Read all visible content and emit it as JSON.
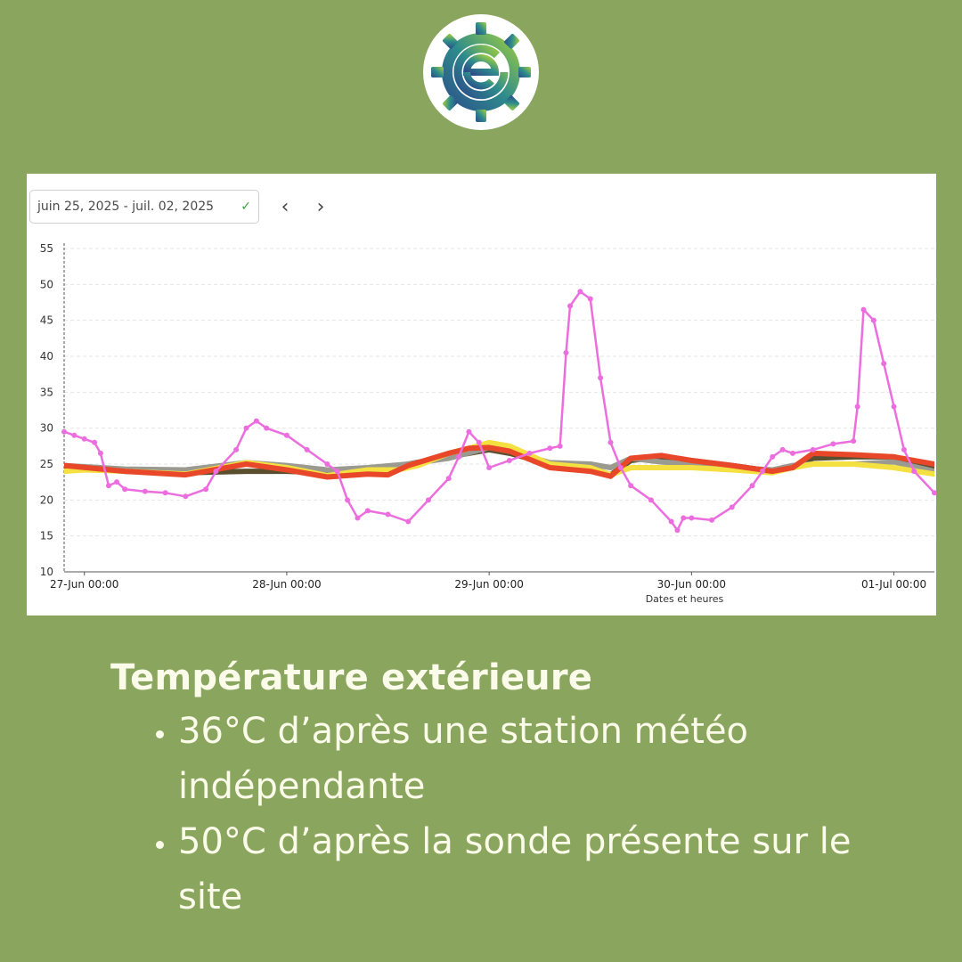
{
  "header": {
    "logo_icon": "gear-e-logo-icon"
  },
  "controls": {
    "date_range": "juin 25, 2025 - juil. 02, 2025",
    "check_icon": "checkmark-icon",
    "prev_icon": "chevron-left-icon",
    "next_icon": "chevron-right-icon",
    "prev_glyph": "‹",
    "next_glyph": "›",
    "check_glyph": "✓"
  },
  "chart_data": {
    "type": "line",
    "xlabel": "Dates et heures",
    "ylabel": "",
    "ylim": [
      10,
      55
    ],
    "yticks": [
      10,
      15,
      20,
      25,
      30,
      35,
      40,
      45,
      50,
      55
    ],
    "xlim": [
      -0.1,
      4.2
    ],
    "xticks": [
      {
        "x": 0,
        "label": "27-Jun 00:00"
      },
      {
        "x": 1,
        "label": "28-Jun 00:00"
      },
      {
        "x": 2,
        "label": "29-Jun 00:00"
      },
      {
        "x": 3,
        "label": "30-Jun 00:00"
      },
      {
        "x": 4,
        "label": "01-Jul 00:00"
      }
    ],
    "grid": true,
    "series": [
      {
        "color": "#5a5030",
        "width": 6,
        "points": [
          [
            -0.1,
            24.6
          ],
          [
            0.2,
            24
          ],
          [
            0.5,
            23.8
          ],
          [
            0.8,
            24
          ],
          [
            1.0,
            24
          ],
          [
            1.2,
            23.8
          ],
          [
            1.4,
            24
          ],
          [
            1.5,
            24.5
          ],
          [
            1.7,
            25.5
          ],
          [
            1.9,
            26.5
          ],
          [
            2.0,
            27
          ],
          [
            2.1,
            26.5
          ],
          [
            2.3,
            25
          ],
          [
            2.5,
            24.5
          ],
          [
            2.6,
            23.5
          ],
          [
            2.7,
            25.5
          ],
          [
            2.85,
            26
          ],
          [
            3.0,
            25.5
          ],
          [
            3.2,
            24.8
          ],
          [
            3.4,
            24
          ],
          [
            3.5,
            24.5
          ],
          [
            3.6,
            25.8
          ],
          [
            3.8,
            26
          ],
          [
            4.0,
            26
          ],
          [
            4.2,
            24.5
          ]
        ]
      },
      {
        "color": "#9a9a90",
        "width": 6,
        "points": [
          [
            -0.1,
            24.8
          ],
          [
            0.2,
            24.3
          ],
          [
            0.5,
            24.2
          ],
          [
            0.8,
            25.2
          ],
          [
            1.0,
            24.8
          ],
          [
            1.2,
            24.2
          ],
          [
            1.4,
            24.5
          ],
          [
            1.6,
            25
          ],
          [
            1.8,
            25.8
          ],
          [
            2.0,
            27.3
          ],
          [
            2.1,
            26.8
          ],
          [
            2.3,
            25.2
          ],
          [
            2.5,
            25
          ],
          [
            2.6,
            24.5
          ],
          [
            2.7,
            25.8
          ],
          [
            2.85,
            25.3
          ],
          [
            3.0,
            25
          ],
          [
            3.2,
            24.5
          ],
          [
            3.4,
            24.2
          ],
          [
            3.5,
            24.8
          ],
          [
            3.6,
            25
          ],
          [
            3.8,
            25
          ],
          [
            4.0,
            25.3
          ],
          [
            4.2,
            24
          ]
        ]
      },
      {
        "color": "#f5e042",
        "width": 6,
        "points": [
          [
            -0.1,
            24
          ],
          [
            0.0,
            24.2
          ],
          [
            0.2,
            24
          ],
          [
            0.5,
            23.6
          ],
          [
            0.8,
            25.2
          ],
          [
            1.0,
            24.5
          ],
          [
            1.2,
            23.4
          ],
          [
            1.4,
            24.2
          ],
          [
            1.55,
            24.2
          ],
          [
            1.65,
            24.8
          ],
          [
            1.8,
            26.5
          ],
          [
            1.9,
            27.2
          ],
          [
            2.0,
            28
          ],
          [
            2.1,
            27.5
          ],
          [
            2.3,
            25
          ],
          [
            2.5,
            24.5
          ],
          [
            2.6,
            23.5
          ],
          [
            2.7,
            24.5
          ],
          [
            2.85,
            24.5
          ],
          [
            3.0,
            24.5
          ],
          [
            3.2,
            24.2
          ],
          [
            3.4,
            23.8
          ],
          [
            3.5,
            24.5
          ],
          [
            3.6,
            25
          ],
          [
            3.8,
            25
          ],
          [
            4.0,
            24.5
          ],
          [
            4.2,
            23.6
          ]
        ]
      },
      {
        "color": "#e8472a",
        "width": 6,
        "points": [
          [
            -0.1,
            24.8
          ],
          [
            0.2,
            24
          ],
          [
            0.5,
            23.5
          ],
          [
            0.8,
            25
          ],
          [
            1.0,
            24.2
          ],
          [
            1.2,
            23.2
          ],
          [
            1.4,
            23.6
          ],
          [
            1.5,
            23.5
          ],
          [
            1.6,
            24.8
          ],
          [
            1.8,
            26.5
          ],
          [
            1.9,
            27.2
          ],
          [
            2.0,
            27.3
          ],
          [
            2.1,
            26.8
          ],
          [
            2.3,
            24.5
          ],
          [
            2.5,
            24
          ],
          [
            2.6,
            23.3
          ],
          [
            2.7,
            25.8
          ],
          [
            2.85,
            26.2
          ],
          [
            3.0,
            25.5
          ],
          [
            3.2,
            24.8
          ],
          [
            3.4,
            24
          ],
          [
            3.5,
            24.5
          ],
          [
            3.6,
            26.5
          ],
          [
            3.8,
            26.3
          ],
          [
            4.0,
            26
          ],
          [
            4.2,
            25
          ]
        ]
      },
      {
        "color": "#ec6ede",
        "width": 2.5,
        "points": [
          [
            -0.1,
            29.5
          ],
          [
            -0.05,
            29
          ],
          [
            0.0,
            28.5
          ],
          [
            0.05,
            28
          ],
          [
            0.08,
            26.5
          ],
          [
            0.12,
            22
          ],
          [
            0.16,
            22.5
          ],
          [
            0.2,
            21.5
          ],
          [
            0.3,
            21.2
          ],
          [
            0.4,
            21
          ],
          [
            0.5,
            20.5
          ],
          [
            0.6,
            21.5
          ],
          [
            0.65,
            24
          ],
          [
            0.75,
            27
          ],
          [
            0.8,
            30
          ],
          [
            0.85,
            31
          ],
          [
            0.9,
            30
          ],
          [
            1.0,
            29
          ],
          [
            1.1,
            27
          ],
          [
            1.2,
            25
          ],
          [
            1.25,
            24
          ],
          [
            1.3,
            20
          ],
          [
            1.35,
            17.5
          ],
          [
            1.4,
            18.5
          ],
          [
            1.5,
            18
          ],
          [
            1.6,
            17
          ],
          [
            1.7,
            20
          ],
          [
            1.8,
            23
          ],
          [
            1.85,
            26
          ],
          [
            1.9,
            29.5
          ],
          [
            1.95,
            28
          ],
          [
            2.0,
            24.5
          ],
          [
            2.1,
            25.5
          ],
          [
            2.2,
            26.5
          ],
          [
            2.3,
            27.2
          ],
          [
            2.35,
            27.5
          ],
          [
            2.38,
            40.5
          ],
          [
            2.4,
            47
          ],
          [
            2.45,
            49
          ],
          [
            2.5,
            48
          ],
          [
            2.55,
            37
          ],
          [
            2.6,
            28
          ],
          [
            2.65,
            24.5
          ],
          [
            2.7,
            22
          ],
          [
            2.8,
            20
          ],
          [
            2.9,
            17
          ],
          [
            2.93,
            15.8
          ],
          [
            2.96,
            17.5
          ],
          [
            3.0,
            17.5
          ],
          [
            3.1,
            17.2
          ],
          [
            3.2,
            19
          ],
          [
            3.3,
            22
          ],
          [
            3.35,
            24
          ],
          [
            3.4,
            26
          ],
          [
            3.45,
            27
          ],
          [
            3.5,
            26.5
          ],
          [
            3.6,
            27
          ],
          [
            3.7,
            27.8
          ],
          [
            3.8,
            28.2
          ],
          [
            3.82,
            33
          ],
          [
            3.85,
            46.5
          ],
          [
            3.9,
            45
          ],
          [
            3.95,
            39
          ],
          [
            4.0,
            33
          ],
          [
            4.05,
            27
          ],
          [
            4.1,
            24
          ],
          [
            4.2,
            21
          ]
        ]
      }
    ],
    "note": "x in days since 27-Jun 00:00"
  },
  "caption": {
    "title": "Température extérieure",
    "bullets": [
      "36°C d’après une station météo indépendante",
      "50°C d’après la sonde présente sur le site"
    ]
  }
}
